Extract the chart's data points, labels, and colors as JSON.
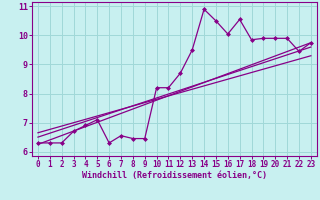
{
  "xlabel": "Windchill (Refroidissement éolien,°C)",
  "xlim": [
    -0.5,
    23.5
  ],
  "ylim": [
    5.85,
    11.15
  ],
  "yticks": [
    6,
    7,
    8,
    9,
    10,
    11
  ],
  "xticks": [
    0,
    1,
    2,
    3,
    4,
    5,
    6,
    7,
    8,
    9,
    10,
    11,
    12,
    13,
    14,
    15,
    16,
    17,
    18,
    19,
    20,
    21,
    22,
    23
  ],
  "bg_color": "#c8f0f0",
  "grid_color": "#a0d8d8",
  "line_color": "#880088",
  "data_x": [
    0,
    1,
    2,
    3,
    4,
    5,
    6,
    7,
    8,
    9,
    10,
    11,
    12,
    13,
    14,
    15,
    16,
    17,
    18,
    19,
    20,
    21,
    22,
    23
  ],
  "data_y": [
    6.3,
    6.3,
    6.3,
    6.7,
    6.9,
    7.1,
    6.3,
    6.55,
    6.45,
    6.45,
    8.2,
    8.2,
    8.7,
    9.5,
    10.9,
    10.5,
    10.05,
    10.55,
    9.85,
    9.9,
    9.9,
    9.9,
    9.45,
    9.75
  ],
  "reg_lines": [
    {
      "x": [
        0,
        23
      ],
      "y": [
        6.25,
        9.75
      ]
    },
    {
      "x": [
        0,
        23
      ],
      "y": [
        6.5,
        9.6
      ]
    },
    {
      "x": [
        0,
        23
      ],
      "y": [
        6.65,
        9.3
      ]
    }
  ],
  "tick_fontsize": 5.5,
  "label_fontsize": 6.0,
  "figsize": [
    3.2,
    2.0
  ],
  "dpi": 100
}
